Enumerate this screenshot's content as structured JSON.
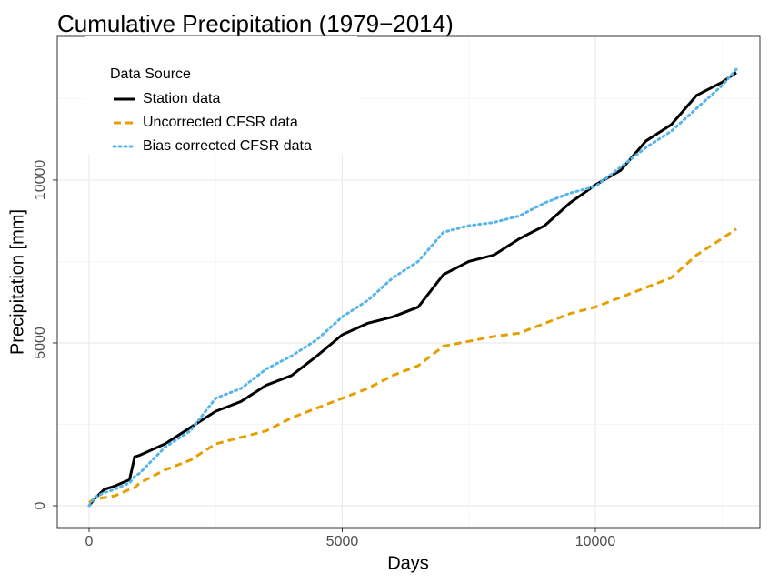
{
  "chart_data": {
    "type": "line",
    "title": "Cumulative Precipitation (1979−2014)",
    "x_label": "Days",
    "y_label": "Precipitation [mm]",
    "x": [
      0,
      100,
      300,
      500,
      800,
      900,
      1000,
      1500,
      2000,
      2500,
      3000,
      3500,
      4000,
      4500,
      5000,
      5500,
      6000,
      6500,
      7000,
      7500,
      8000,
      8500,
      9000,
      9500,
      10000,
      10500,
      11000,
      11500,
      12000,
      12500,
      12784
    ],
    "series": [
      {
        "name": "Station data",
        "color": "#000000",
        "dash": "solid",
        "values": [
          0,
          200,
          500,
          600,
          800,
          1500,
          1550,
          1900,
          2400,
          2900,
          3200,
          3700,
          4000,
          4600,
          5250,
          5600,
          5800,
          6100,
          7100,
          7500,
          7700,
          8200,
          8600,
          9300,
          9850,
          10300,
          11200,
          11700,
          12600,
          13000,
          13300
        ]
      },
      {
        "name": "Uncorrected CFSR data",
        "color": "#E69F00",
        "dash": "dashed",
        "values": [
          100,
          200,
          250,
          300,
          500,
          550,
          700,
          1100,
          1400,
          1900,
          2100,
          2300,
          2700,
          3000,
          3300,
          3600,
          4000,
          4300,
          4900,
          5050,
          5200,
          5300,
          5600,
          5900,
          6100,
          6400,
          6700,
          7000,
          7700,
          8200,
          8500
        ]
      },
      {
        "name": "Bias corrected CFSR data",
        "color": "#56B4E9",
        "dash": "dotted",
        "values": [
          0,
          250,
          400,
          500,
          700,
          900,
          1000,
          1800,
          2300,
          3300,
          3600,
          4200,
          4600,
          5100,
          5800,
          6300,
          7000,
          7500,
          8400,
          8600,
          8700,
          8900,
          9300,
          9600,
          9800,
          10400,
          11000,
          11500,
          12200,
          12900,
          13400
        ]
      }
    ],
    "legend_title": "Data Source",
    "legend_position": "top-left",
    "xlim": [
      -628,
      13250
    ],
    "xticks": [
      0,
      5000,
      10000
    ],
    "x_minor_ticks": [
      2500,
      7500,
      12500
    ],
    "ylim": [
      -670,
      14410
    ],
    "yticks": [
      0,
      5000,
      10000
    ],
    "y_minor_ticks": [
      2500,
      7500,
      12500
    ],
    "grid": true
  }
}
